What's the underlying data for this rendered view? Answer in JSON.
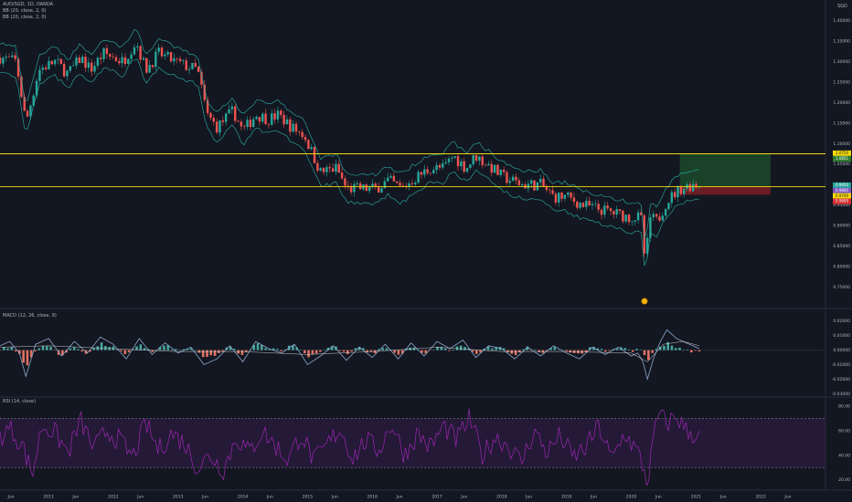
{
  "header": {
    "symbol": "AUD/SGD, 1D, OANDA",
    "bb1": "BB (20, close, 2, 0)",
    "bb2": "BB (20, close, 2, 0)",
    "currency": "SGD"
  },
  "panes": {
    "macd_title": "MACD (12, 26, close, 9)",
    "rsi_title": "RSI (14, close)"
  },
  "price_levels": {
    "upper_line": 1.075,
    "lower_line": 0.995,
    "tag_upper": "1.0750",
    "tag_target": "1.0851",
    "tag_current": "0.9950",
    "tag_entry": "0.9800",
    "tag_stop": "0.9700",
    "tag_stop2": "0.9600"
  },
  "colors": {
    "background": "#131722",
    "candle_up": "#26a69a",
    "candle_down": "#ef5350",
    "bollinger": "#2bb5a8",
    "level_line": "#f5d90a",
    "profit_zone": "#1b4a2a",
    "loss_zone": "#7a1f25",
    "macd_line": "#8aa6c8",
    "macd_signal": "#e3e3e3",
    "hist_up": "#4db6ac",
    "hist_down": "#f77c6a",
    "rsi_line": "#9c27b0",
    "rsi_band": "#2a1a3f"
  },
  "chart_data": [
    {
      "type": "candlestick",
      "title": "AUD/SGD, 1D, OANDA",
      "ylim": [
        0.7,
        1.45
      ],
      "yticks": [
        1.4,
        1.35,
        1.3,
        1.25,
        1.2,
        1.15,
        1.1,
        1.05,
        1.0,
        0.95,
        0.9,
        0.85,
        0.8,
        0.75
      ],
      "ytick_labels": [
        "1.40000",
        "1.35000",
        "1.30000",
        "1.25000",
        "1.20000",
        "1.15000",
        "1.10000",
        "1.05000",
        "1.00000",
        "0.95000",
        "0.90000",
        "0.85000",
        "0.80000",
        "0.75000"
      ],
      "xlim": [
        2010.25,
        2023.0
      ],
      "x_labels": [
        "Jun",
        "2011",
        "Jun",
        "2012",
        "Jun",
        "2013",
        "Jun",
        "2014",
        "Jun",
        "2015",
        "Jun",
        "2016",
        "Jun",
        "2017",
        "Jun",
        "2018",
        "Jun",
        "2019",
        "Jun",
        "2020",
        "Jun",
        "2021",
        "Jun",
        "2022",
        "Jun"
      ],
      "x_positions": [
        2010.42,
        2011.0,
        2011.42,
        2012.0,
        2012.42,
        2013.0,
        2013.42,
        2014.0,
        2014.42,
        2015.0,
        2015.42,
        2016.0,
        2016.42,
        2017.0,
        2017.42,
        2018.0,
        2018.42,
        2019.0,
        2019.42,
        2020.0,
        2020.42,
        2021.0,
        2021.42,
        2022.0,
        2022.42
      ],
      "price_path": {
        "x": [
          2010.25,
          2010.5,
          2010.65,
          2010.85,
          2011.1,
          2011.3,
          2011.5,
          2011.65,
          2011.85,
          2012.15,
          2012.35,
          2012.5,
          2012.7,
          2012.95,
          2013.1,
          2013.3,
          2013.45,
          2013.6,
          2013.85,
          2014.0,
          2014.2,
          2014.4,
          2014.55,
          2014.75,
          2014.95,
          2015.2,
          2015.45,
          2015.6,
          2015.85,
          2016.05,
          2016.25,
          2016.45,
          2016.7,
          2016.9,
          2017.1,
          2017.25,
          2017.45,
          2017.6,
          2017.85,
          2018.0,
          2018.3,
          2018.6,
          2018.8,
          2019.0,
          2019.25,
          2019.5,
          2019.75,
          2019.98,
          2020.15,
          2020.22,
          2020.28,
          2020.4,
          2020.55,
          2020.75,
          2020.95,
          2021.05
        ],
        "y": [
          1.31,
          1.3,
          1.15,
          1.28,
          1.3,
          1.27,
          1.31,
          1.28,
          1.32,
          1.3,
          1.35,
          1.28,
          1.32,
          1.3,
          1.29,
          1.28,
          1.17,
          1.14,
          1.18,
          1.13,
          1.17,
          1.16,
          1.17,
          1.14,
          1.12,
          1.03,
          1.04,
          0.99,
          0.99,
          0.99,
          1.01,
          0.99,
          1.02,
          1.04,
          1.04,
          1.07,
          1.04,
          1.07,
          1.04,
          1.02,
          1.0,
          1.0,
          0.97,
          0.97,
          0.95,
          0.94,
          0.93,
          0.92,
          0.92,
          0.8,
          0.92,
          0.91,
          0.96,
          0.99,
          1.0,
          1.0
        ]
      },
      "levels": [
        1.075,
        0.995
      ],
      "position": {
        "x_start": 2020.75,
        "x_end": 2022.15,
        "entry": 0.995,
        "target": 1.075,
        "stop": 0.975
      }
    },
    {
      "type": "line",
      "title": "MACD (12, 26, close, 9)",
      "ylim": [
        -0.031,
        0.028
      ],
      "yticks": [
        0.02,
        0.01,
        0.0,
        -0.01,
        -0.02,
        -0.03
      ],
      "ytick_labels": [
        "0.02000",
        "0.01000",
        "0.00000",
        "-0.01000",
        "-0.02000",
        "-0.03000"
      ],
      "series": [
        {
          "name": "MACD",
          "x": [
            2010.25,
            2010.4,
            2010.55,
            2010.65,
            2010.8,
            2011.0,
            2011.2,
            2011.4,
            2011.6,
            2011.8,
            2012.0,
            2012.2,
            2012.4,
            2012.6,
            2012.8,
            2013.0,
            2013.2,
            2013.4,
            2013.6,
            2013.8,
            2014.0,
            2014.2,
            2014.4,
            2014.6,
            2014.8,
            2015.0,
            2015.2,
            2015.4,
            2015.6,
            2015.8,
            2016.0,
            2016.2,
            2016.4,
            2016.6,
            2016.8,
            2017.0,
            2017.2,
            2017.4,
            2017.6,
            2017.8,
            2018.0,
            2018.2,
            2018.4,
            2018.6,
            2018.8,
            2019.0,
            2019.2,
            2019.4,
            2019.6,
            2019.8,
            2020.0,
            2020.1,
            2020.18,
            2020.25,
            2020.35,
            2020.45,
            2020.55,
            2020.7,
            2020.85,
            2021.0,
            2021.05
          ],
          "y": [
            0.003,
            0.006,
            -0.002,
            -0.018,
            0.004,
            0.008,
            -0.004,
            0.006,
            -0.002,
            0.009,
            0.004,
            -0.006,
            0.008,
            -0.003,
            0.005,
            -0.002,
            0.002,
            -0.01,
            -0.006,
            0.003,
            -0.008,
            0.006,
            0.001,
            -0.002,
            0.004,
            -0.01,
            -0.004,
            0.003,
            -0.007,
            0.002,
            -0.005,
            0.004,
            -0.006,
            0.005,
            -0.004,
            0.006,
            0.001,
            0.007,
            -0.005,
            0.003,
            0.001,
            -0.006,
            0.002,
            -0.004,
            0.003,
            -0.002,
            -0.006,
            0.002,
            -0.003,
            0.002,
            -0.004,
            -0.002,
            -0.008,
            -0.02,
            -0.005,
            0.006,
            0.014,
            0.008,
            0.005,
            0.002,
            0.001
          ]
        },
        {
          "name": "Signal",
          "x": [
            2010.25,
            2011.0,
            2012.0,
            2013.0,
            2014.0,
            2015.0,
            2016.0,
            2017.0,
            2018.0,
            2019.0,
            2020.0,
            2020.25,
            2020.5,
            2020.8,
            2021.05
          ],
          "y": [
            0.002,
            0.003,
            0.001,
            -0.001,
            -0.001,
            -0.003,
            -0.001,
            0.002,
            -0.001,
            -0.001,
            -0.002,
            -0.008,
            0.004,
            0.006,
            0.003
          ]
        }
      ]
    },
    {
      "type": "line",
      "title": "RSI (14, close)",
      "ylim": [
        13,
        86
      ],
      "yticks": [
        80,
        60,
        40,
        20
      ],
      "ytick_labels": [
        "80.00",
        "60.00",
        "40.00",
        "20.00"
      ],
      "band": [
        30,
        70
      ],
      "series": [
        {
          "name": "RSI",
          "x": [
            2010.25,
            2010.4,
            2010.6,
            2010.75,
            2010.9,
            2011.1,
            2011.3,
            2011.5,
            2011.7,
            2011.9,
            2012.1,
            2012.3,
            2012.5,
            2012.7,
            2012.9,
            2013.1,
            2013.3,
            2013.5,
            2013.7,
            2013.9,
            2014.1,
            2014.3,
            2014.5,
            2014.7,
            2014.9,
            2015.1,
            2015.3,
            2015.5,
            2015.7,
            2015.9,
            2016.1,
            2016.3,
            2016.5,
            2016.7,
            2016.9,
            2017.1,
            2017.3,
            2017.5,
            2017.7,
            2017.9,
            2018.1,
            2018.3,
            2018.5,
            2018.7,
            2018.9,
            2019.1,
            2019.3,
            2019.5,
            2019.7,
            2019.9,
            2020.1,
            2020.2,
            2020.25,
            2020.32,
            2020.42,
            2020.55,
            2020.7,
            2020.85,
            2021.05
          ],
          "y": [
            55,
            62,
            48,
            24,
            65,
            58,
            42,
            68,
            45,
            60,
            52,
            38,
            66,
            44,
            58,
            50,
            30,
            40,
            28,
            55,
            42,
            60,
            48,
            36,
            58,
            35,
            48,
            62,
            38,
            52,
            44,
            66,
            40,
            58,
            46,
            64,
            52,
            70,
            40,
            55,
            48,
            34,
            60,
            42,
            56,
            38,
            46,
            64,
            36,
            58,
            42,
            28,
            16,
            45,
            74,
            66,
            72,
            60,
            55
          ]
        }
      ]
    }
  ]
}
